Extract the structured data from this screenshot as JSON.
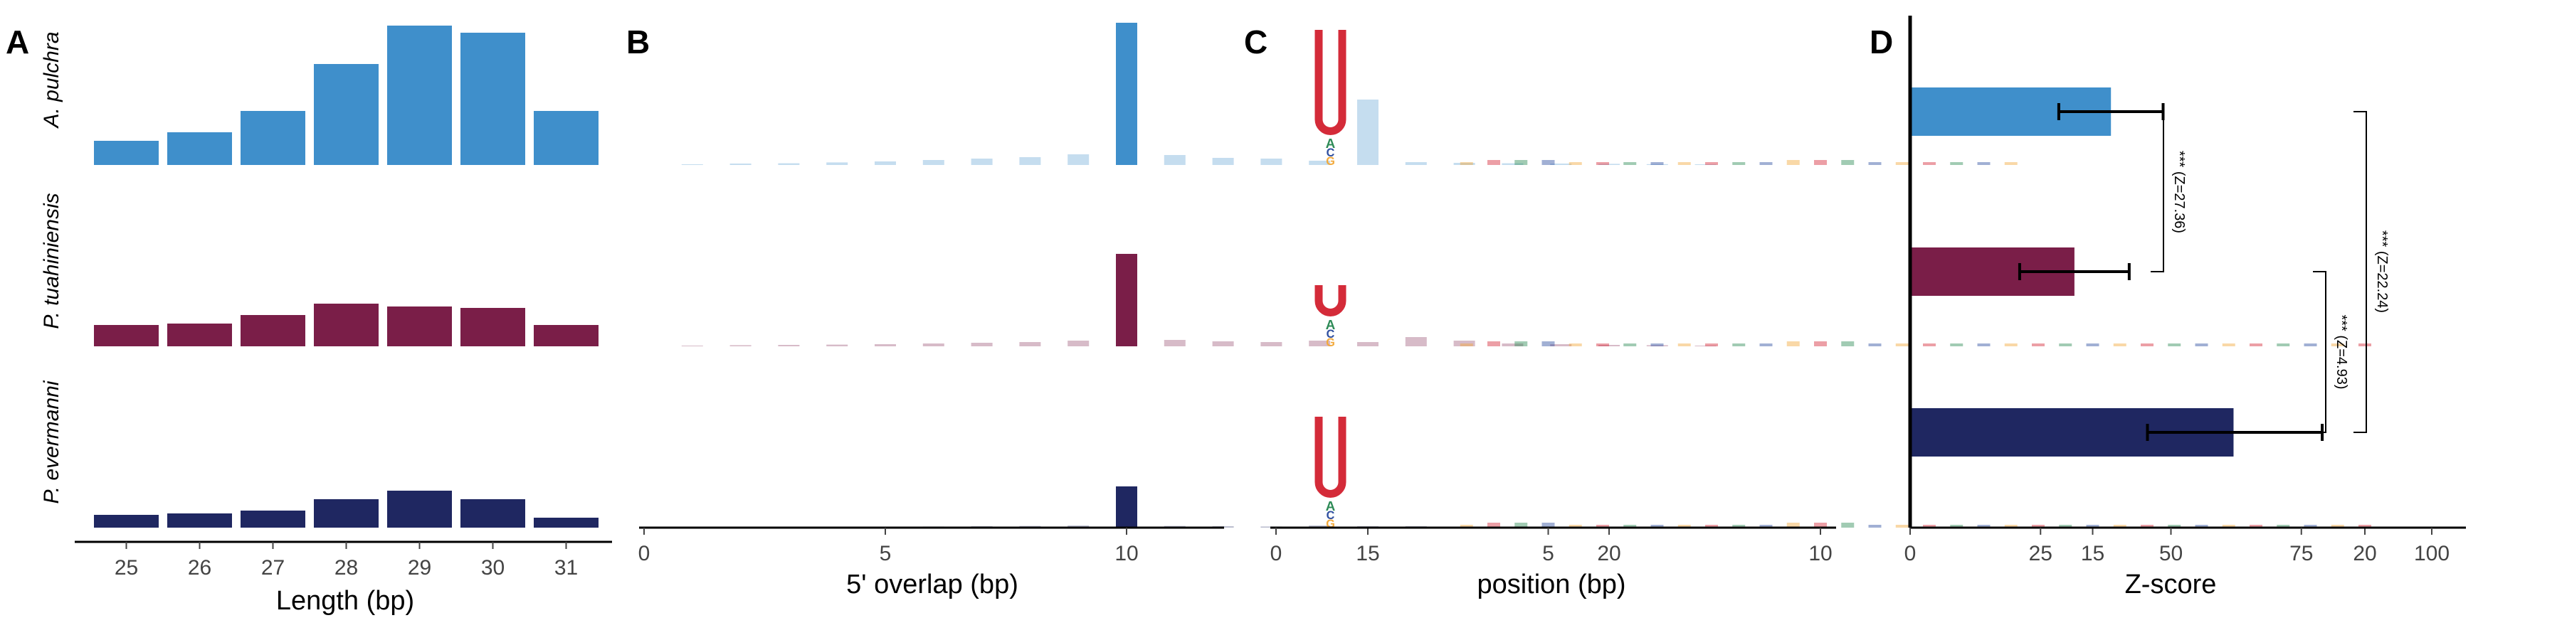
{
  "colors": {
    "A. pulchra": "#3F8FCB",
    "P. tuahiniensis": "#7A1E48",
    "P. evermanni": "#1F2761",
    "logo_U": "#D42B39",
    "logo_A": "#2E8B57",
    "logo_C": "#2F4F9F",
    "logo_G": "#F2A93B"
  },
  "panels": {
    "A": "A",
    "B": "B",
    "C": "C",
    "D": "D"
  },
  "chart_data": [
    {
      "panel": "A",
      "type": "bar",
      "xlabel": "Length (bp)",
      "categories": [
        "25",
        "26",
        "27",
        "28",
        "29",
        "30",
        "31"
      ],
      "ylim": [
        0,
        1
      ],
      "series": [
        {
          "name": "A. pulchra",
          "values": [
            0.17,
            0.23,
            0.38,
            0.71,
            0.98,
            0.93,
            0.38
          ]
        },
        {
          "name": "P. tuahiniensis",
          "values": [
            0.15,
            0.16,
            0.22,
            0.3,
            0.28,
            0.27,
            0.15
          ]
        },
        {
          "name": "P. evermanni",
          "values": [
            0.09,
            0.1,
            0.12,
            0.2,
            0.26,
            0.2,
            0.07
          ]
        }
      ]
    },
    {
      "panel": "B",
      "type": "bar",
      "xlabel": "5' overlap (bp)",
      "x_ticks": [
        "0",
        "5",
        "10",
        "15",
        "20"
      ],
      "xlim": [
        0,
        23
      ],
      "x": [
        1,
        2,
        3,
        4,
        5,
        6,
        7,
        8,
        9,
        10,
        11,
        12,
        13,
        14,
        15,
        16,
        17,
        18,
        19,
        20,
        21,
        22
      ],
      "ylim": [
        0,
        1
      ],
      "highlight_x": 10,
      "series": [
        {
          "name": "A. pulchra",
          "values": [
            0.005,
            0.01,
            0.012,
            0.018,
            0.025,
            0.035,
            0.045,
            0.055,
            0.075,
            1.0,
            0.07,
            0.05,
            0.045,
            0.03,
            0.46,
            0.02,
            0.015,
            0.012,
            0.01,
            0.008,
            0.006,
            0.005
          ]
        },
        {
          "name": "P. tuahiniensis",
          "values": [
            0.005,
            0.008,
            0.01,
            0.012,
            0.015,
            0.02,
            0.025,
            0.03,
            0.04,
            0.65,
            0.045,
            0.035,
            0.03,
            0.04,
            0.03,
            0.065,
            0.04,
            0.02,
            0.015,
            0.01,
            0.008,
            0.005
          ]
        },
        {
          "name": "P. evermanni",
          "values": [
            0.002,
            0.003,
            0.004,
            0.005,
            0.006,
            0.008,
            0.01,
            0.012,
            0.015,
            0.29,
            0.012,
            0.01,
            0.008,
            0.015,
            0.01,
            0.01,
            0.006,
            0.004,
            0.003,
            0.002,
            0.002,
            0.002
          ]
        }
      ]
    },
    {
      "panel": "C",
      "type": "bar",
      "xlabel": "position (bp)",
      "x_ticks": [
        "0",
        "5",
        "10",
        "15",
        "20"
      ],
      "xlim": [
        0,
        20
      ],
      "series": [
        {
          "name": "A. pulchra",
          "U_height": 0.74,
          "tail_end": 13.5
        },
        {
          "name": "P. tuahiniensis",
          "U_height": 0.22,
          "tail_end": 20
        },
        {
          "name": "P. evermanni",
          "U_height": 0.57,
          "tail_end": 20
        }
      ]
    },
    {
      "panel": "D",
      "type": "bar",
      "orientation": "horizontal",
      "xlabel": "Z-score",
      "x_ticks": [
        "0",
        "25",
        "50",
        "75",
        "100"
      ],
      "xlim": [
        0,
        100
      ],
      "series": [
        {
          "name": "A. pulchra",
          "value": 38.5,
          "err_low": 28.5,
          "err_high": 48.5
        },
        {
          "name": "P. tuahiniensis",
          "value": 31.5,
          "err_low": 21,
          "err_high": 42
        },
        {
          "name": "P. evermanni",
          "value": 62,
          "err_low": 45.5,
          "err_high": 79
        }
      ],
      "brackets": [
        {
          "from": 0,
          "to": 1,
          "label": "*** (Z=27.36)"
        },
        {
          "from": 1,
          "to": 2,
          "label": "*** (Z=4.93)"
        },
        {
          "from": 0,
          "to": 2,
          "label": "*** (Z=22.24)"
        }
      ]
    }
  ]
}
